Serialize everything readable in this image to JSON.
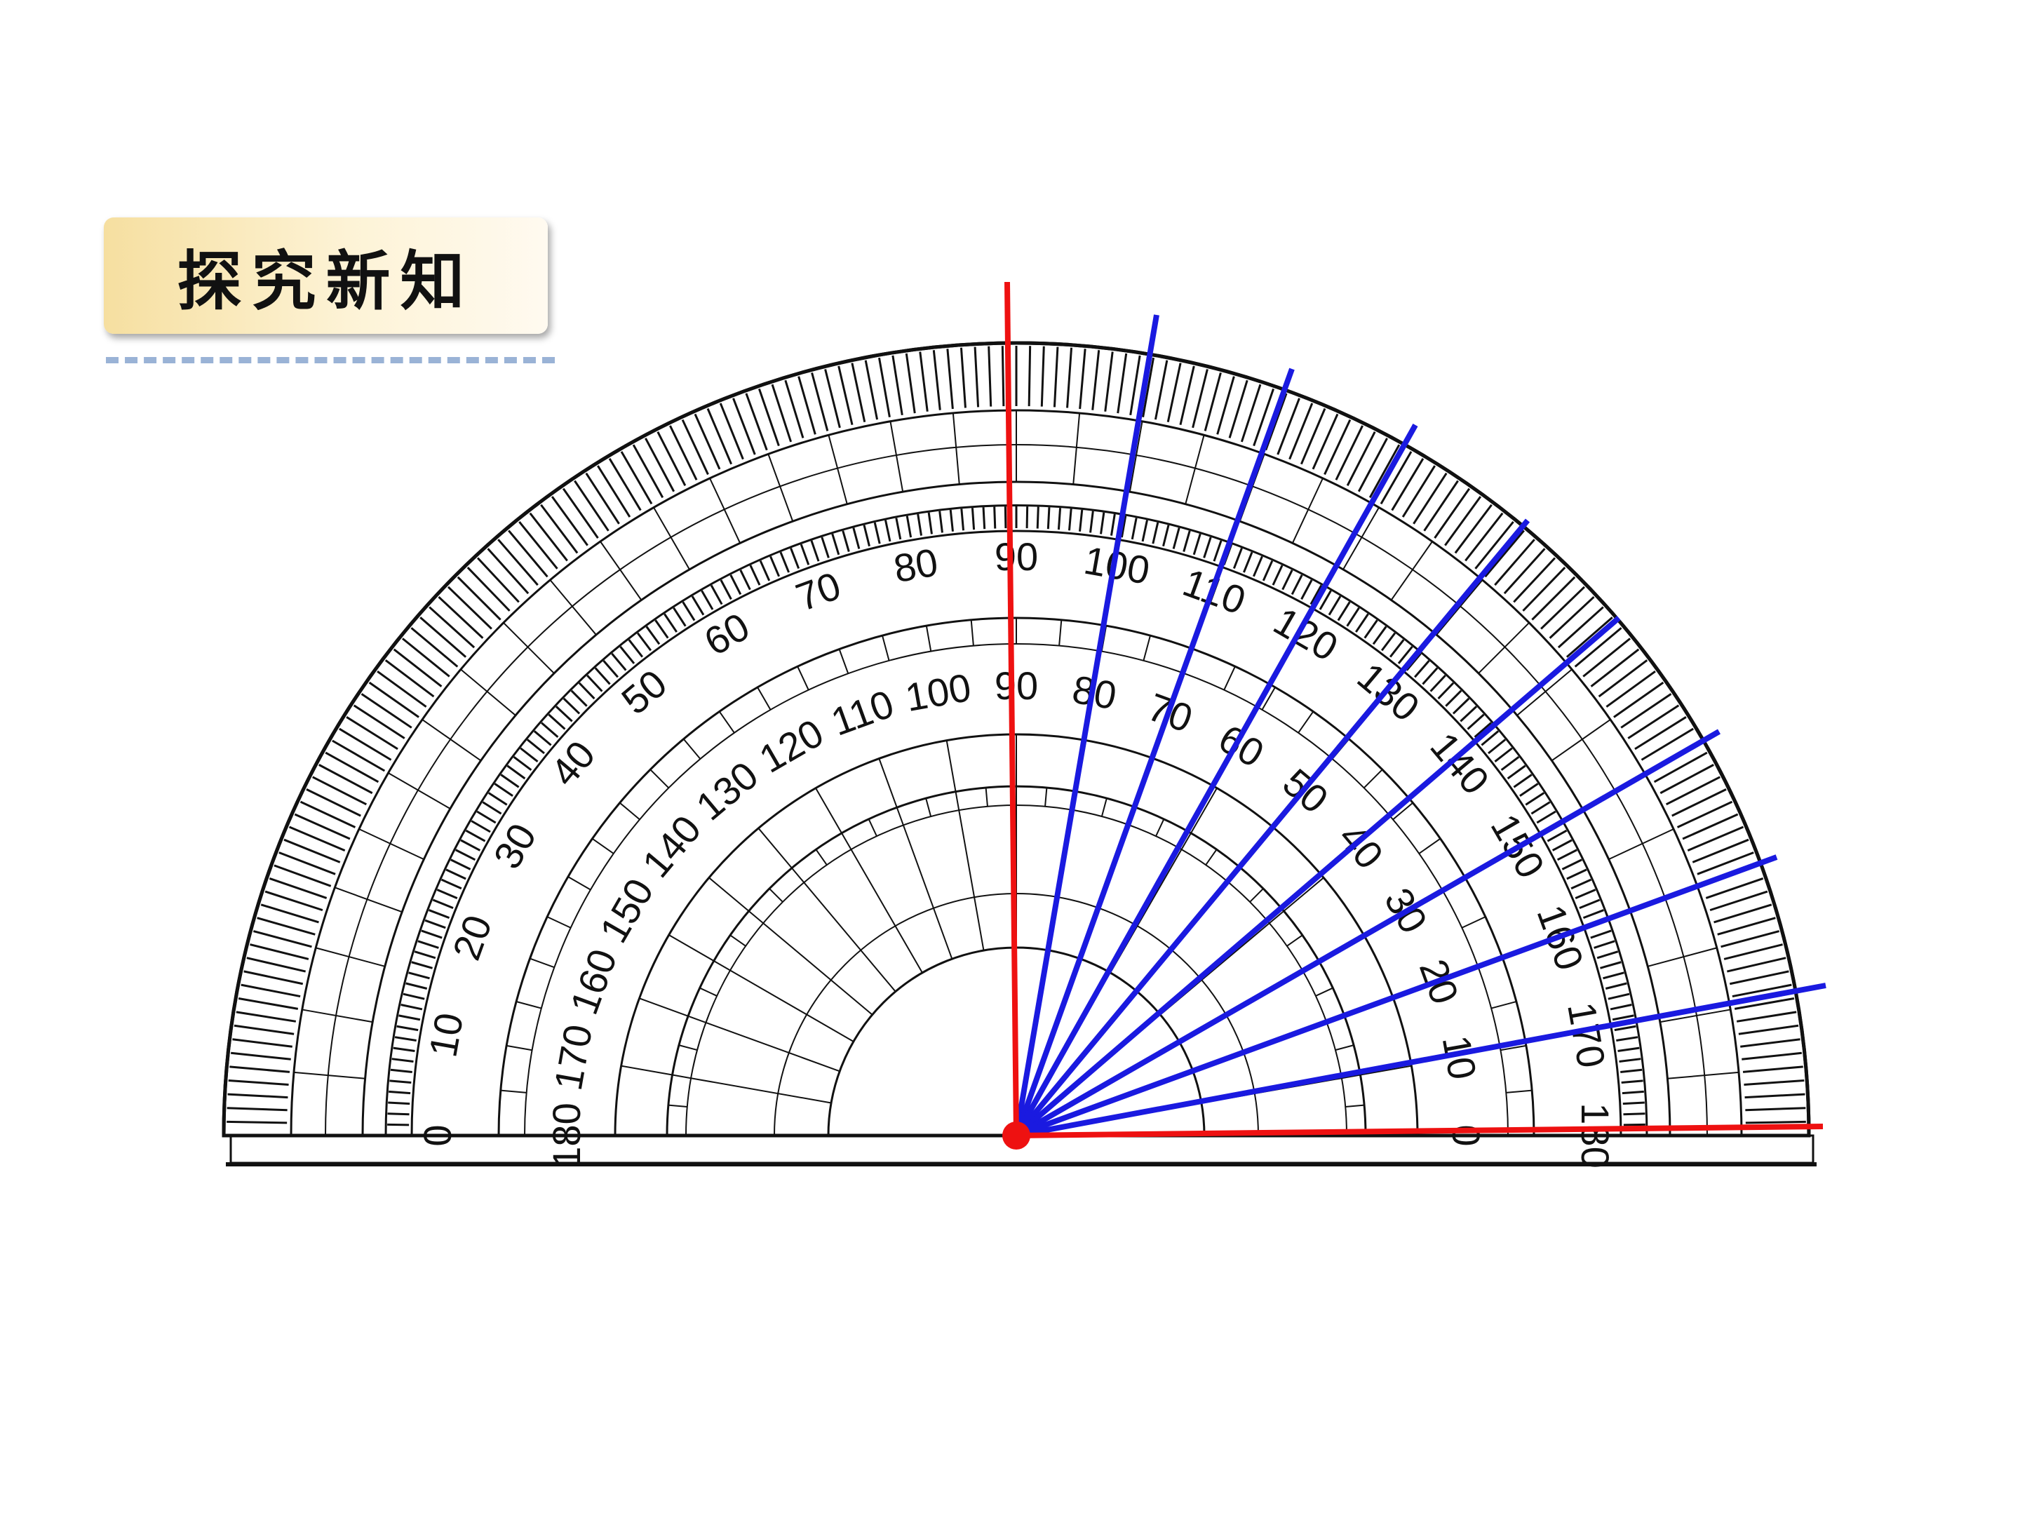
{
  "header": {
    "title": "探究新知"
  },
  "protractor": {
    "outer_labels": [
      0,
      10,
      20,
      30,
      40,
      50,
      60,
      70,
      80,
      90,
      100,
      110,
      120,
      130,
      140,
      150,
      160,
      170,
      180
    ],
    "inner_labels": [
      180,
      170,
      160,
      150,
      140,
      130,
      120,
      110,
      100,
      90,
      80,
      70,
      60,
      50,
      40,
      30,
      20,
      10,
      0
    ]
  }
}
